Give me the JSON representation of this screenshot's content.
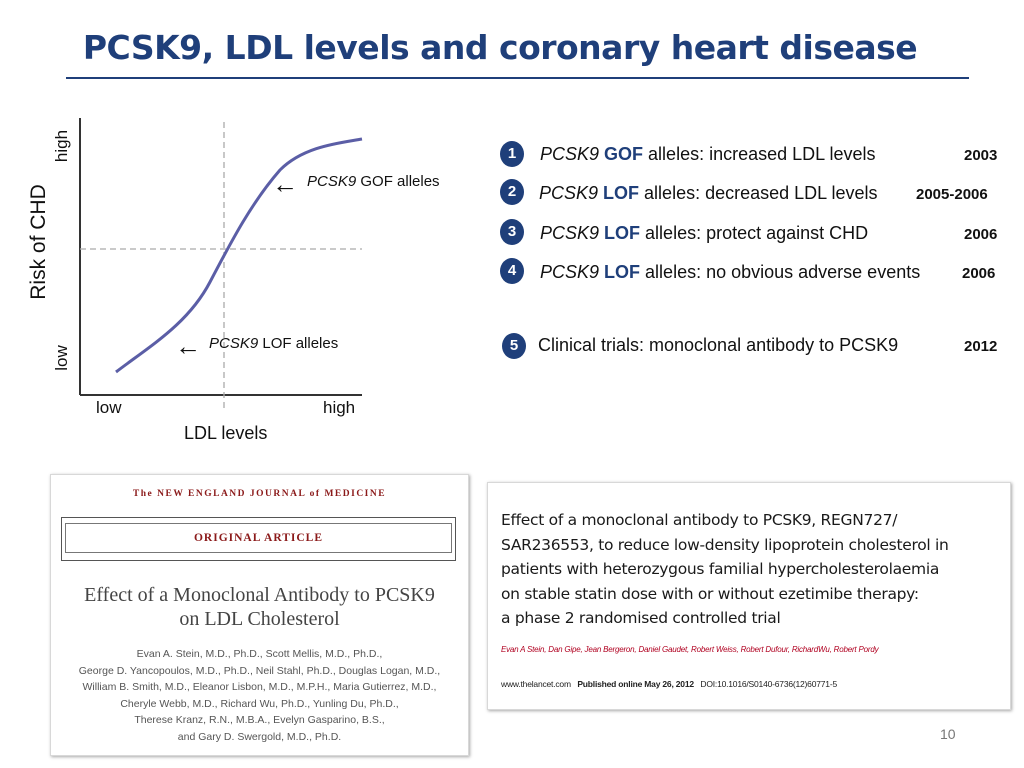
{
  "slide": {
    "title": "PCSK9, LDL levels and coronary heart disease",
    "page_number": "10"
  },
  "chart": {
    "y_high": "high",
    "y_low": "low",
    "y_label": "Risk of CHD",
    "x_low": "low",
    "x_high": "high",
    "x_label": "LDL levels",
    "gof_arrow": "←",
    "gof_gene": "PCSK9",
    "gof_text": " GOF alleles",
    "lof_arrow": "←",
    "lof_gene": "PCSK9",
    "lof_text": " LOF alleles",
    "colors": {
      "curve": "#5b5ea6",
      "axis": "#333333",
      "guide": "#aaaaaa"
    }
  },
  "findings": [
    {
      "num": "1",
      "gene": "PCSK9",
      "type": "GOF",
      "text": " alleles: increased LDL levels",
      "year": "2003"
    },
    {
      "num": "2",
      "gene": "PCSK9",
      "type": "LOF",
      "text": " alleles: decreased LDL levels",
      "year": "2005-2006"
    },
    {
      "num": "3",
      "gene": "PCSK9",
      "type": "LOF",
      "text": " alleles: protect against CHD",
      "year": "2006"
    },
    {
      "num": "4",
      "gene": "PCSK9",
      "type": "LOF",
      "text": " alleles: no obvious adverse events",
      "year": "2006"
    },
    {
      "num": "5",
      "text": "Clinical trials: monoclonal antibody to PCSK9",
      "year": "2012"
    }
  ],
  "nejm": {
    "journal": "The NEW ENGLAND JOURNAL of MEDICINE",
    "section": "ORIGINAL ARTICLE",
    "title_line1": "Effect of a Monoclonal Antibody to PCSK9",
    "title_line2": "on LDL Cholesterol",
    "authors": [
      "Evan A. Stein, M.D., Ph.D., Scott Mellis, M.D., Ph.D.,",
      "George D. Yancopoulos, M.D., Ph.D., Neil Stahl, Ph.D., Douglas Logan, M.D.,",
      "William B. Smith, M.D., Eleanor Lisbon, M.D., M.P.H., Maria Gutierrez, M.D.,",
      "Cheryle Webb, M.D., Richard Wu, Ph.D., Yunling Du, Ph.D.,",
      "Therese Kranz, R.N., M.B.A., Evelyn Gasparino, B.S.,",
      "and Gary D. Swergold, M.D., Ph.D."
    ]
  },
  "lancet": {
    "title_lines": [
      "Effect of a monoclonal antibody to PCSK9, REGN727/",
      "SAR236553, to reduce low-density lipoprotein cholesterol in",
      "patients with heterozygous familial hypercholesterolaemia",
      "on stable statin dose with or without ezetimibe therapy:",
      "a phase 2 randomised controlled trial"
    ],
    "authors": "Evan A Stein, Dan Gipe, Jean Bergeron, Daniel Gaudet, Robert Weiss, Robert Dufour, RichardWu, Robert Pordy",
    "site": "www.thelancet.com",
    "published": "Published online May 26, 2012",
    "doi": "DOI:10.1016/S0140-6736(12)60771-5"
  }
}
